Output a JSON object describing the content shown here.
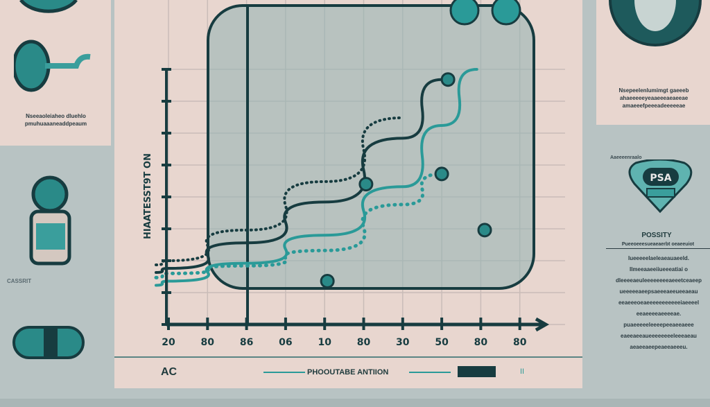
{
  "left_panel": {
    "caption": "Nseeaoleiaheo dluehlo pmuhuaaaneaddpeaum",
    "label": "CASSRIT",
    "icons": [
      "gauge-icon",
      "organ-icon",
      "pill-bottle-icon",
      "capsule-icon"
    ]
  },
  "right_panel": {
    "caption": "Nsepeelenlumimgt gaeeeb ahaeeeeeyeaaeeeaeaeeae amaeeefpeeeadeeeeeae",
    "badge_label": "Aaeeeenraalo",
    "badge_text": "PSA",
    "heading": "POSSITY",
    "subheading": "Pueeoeeesueaeaerbt oeaeeuiot",
    "body": "Iueeeeelaeleaeauaeeld. Ilmeeaaeeiiueeeatiai o dleeeeaeuleeeeeeeeaeeetceaeep ueeeeeaeepsaeeeaeeueeaeau eeaeeeoeaeeeeeeeeeeeiaeeeel eeaeeeeaeeeeae. puaeeeeeleeeepeeaeeaeee eaeeaeeaueeeeeeeeleeeaeau aeaeeaeepeaeeaeeeu."
  },
  "footer": {
    "left": "AC",
    "center": "PHOOUTABE ANTIION",
    "right": "II"
  },
  "colors": {
    "dark": "#173c40",
    "teal": "#2a9a98",
    "pink": "#e8d6cf",
    "panel": "#b8c3c3"
  },
  "chart_data": {
    "type": "line",
    "title": "",
    "ylabel": "HIAATESST9T ON",
    "xlabel": "",
    "categories": [
      "20",
      "80",
      "86",
      "06",
      "10",
      "80",
      "30",
      "50",
      "80",
      "80"
    ],
    "ylim": [
      0,
      100
    ],
    "grid": true,
    "series": [
      {
        "style": "solid-dark",
        "x": [
          0,
          2,
          4,
          6,
          7
        ],
        "values": [
          22,
          32,
          48,
          73,
          96
        ]
      },
      {
        "style": "solid-teal",
        "x": [
          0,
          2,
          4,
          6,
          7,
          7.9
        ],
        "values": [
          17,
          24,
          35,
          54,
          78,
          100
        ]
      },
      {
        "style": "dotted-dark",
        "x": [
          0,
          2,
          4,
          6
        ],
        "values": [
          25,
          37,
          56,
          81
        ]
      },
      {
        "style": "dotted-teal",
        "x": [
          0,
          2,
          4,
          6,
          7
        ],
        "values": [
          20,
          23,
          29,
          47,
          59
        ]
      }
    ],
    "points": [
      {
        "x": 5.06,
        "y": 55
      },
      {
        "x": 7,
        "y": 59
      },
      {
        "x": 7.16,
        "y": 96
      },
      {
        "x": 8.1,
        "y": 37
      },
      {
        "x": 4.07,
        "y": 17
      }
    ]
  }
}
